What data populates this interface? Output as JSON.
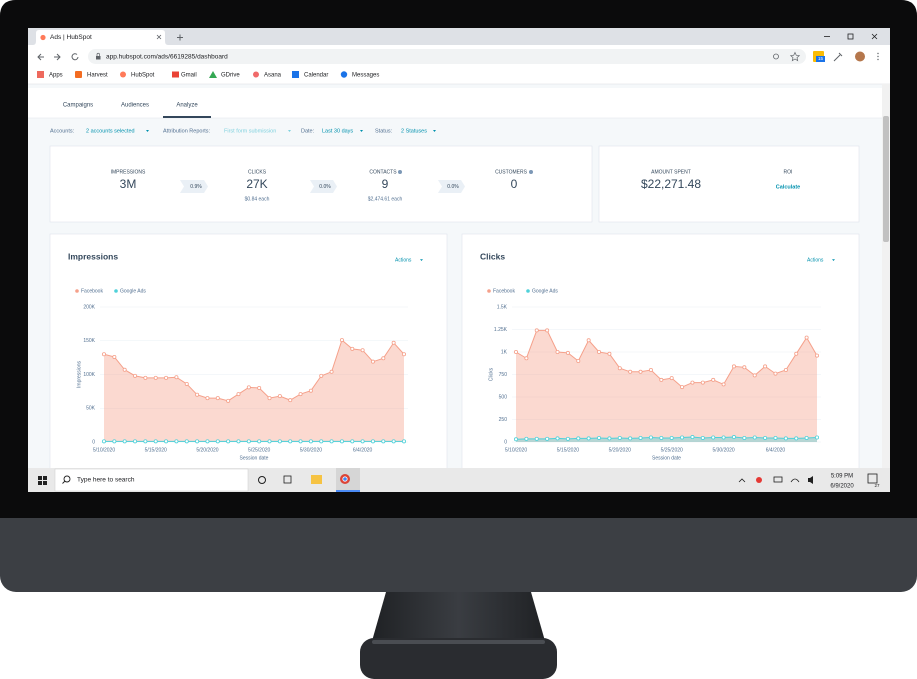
{
  "browser": {
    "tab_title": "Ads | HubSpot",
    "url": "app.hubspot.com/ads/6619285/dashboard",
    "calendar_badge": "15",
    "bookmarks": [
      "Apps",
      "Harvest",
      "HubSpot",
      "Gmail",
      "GDrive",
      "Asana",
      "Calendar",
      "Messages"
    ]
  },
  "nav": {
    "tabs": [
      "Campaigns",
      "Audiences",
      "Analyze"
    ]
  },
  "filters": [
    {
      "label": "Accounts:",
      "value": "2 accounts selected"
    },
    {
      "label": "Attribution Reports:",
      "value": "First form submission"
    },
    {
      "label": "Date:",
      "value": "Last 30 days"
    },
    {
      "label": "Status:",
      "value": "2 Statuses"
    }
  ],
  "summary": {
    "metrics": [
      {
        "label": "IMPRESSIONS",
        "value": "3M"
      },
      {
        "label": "CLICKS",
        "value": "27K",
        "sub": "$0.84 each"
      },
      {
        "label": "CONTACTS",
        "value": "9",
        "sub": "$2,474.61 each"
      },
      {
        "label": "CUSTOMERS",
        "value": "0"
      }
    ],
    "rates": [
      "0.9%",
      "0.0%",
      "0.0%"
    ],
    "spend": {
      "label": "AMOUNT SPENT",
      "value": "$22,271.48"
    },
    "roi": {
      "label": "ROI",
      "action": "Calculate"
    }
  },
  "chart_data": [
    {
      "type": "area",
      "title": "Impressions",
      "menu": "Actions",
      "y_label": "Impressions",
      "x_label": "Session date",
      "categories": [
        "5/10/2020",
        null,
        null,
        null,
        null,
        "5/15/2020",
        null,
        null,
        null,
        null,
        "5/20/2020",
        null,
        null,
        null,
        null,
        "5/25/2020",
        null,
        null,
        null,
        null,
        "5/30/2020",
        null,
        null,
        null,
        null,
        "6/4/2020",
        null,
        null,
        null,
        null
      ],
      "series": [
        {
          "name": "Facebook",
          "color": "#f5a08a",
          "values": [
            130000,
            126000,
            107000,
            98000,
            95000,
            95000,
            95000,
            96000,
            86000,
            70000,
            65000,
            65000,
            61000,
            71000,
            81000,
            80000,
            65000,
            68000,
            62000,
            71000,
            76000,
            98000,
            104000,
            151000,
            138000,
            136000,
            119000,
            124000,
            147000,
            130000
          ]
        },
        {
          "name": "Google Ads",
          "color": "#4fd1d9",
          "values": [
            1000,
            1000,
            1000,
            1000,
            1000,
            1000,
            1000,
            1000,
            1000,
            1000,
            1000,
            1000,
            1000,
            1000,
            1000,
            1000,
            1000,
            1000,
            1000,
            1000,
            1000,
            1000,
            1000,
            1000,
            1000,
            1000,
            1000,
            1000,
            1000,
            1000
          ]
        }
      ],
      "ylim": [
        0,
        200000
      ],
      "yticks": [
        0,
        {
          "value": 50000,
          "label": "50K"
        },
        {
          "value": 100000,
          "label": "100K"
        },
        {
          "value": 150000,
          "label": "150K"
        },
        {
          "value": 200000,
          "label": "200K"
        }
      ],
      "grid": true
    },
    {
      "type": "area",
      "title": "Clicks",
      "menu": "Actions",
      "y_label": "Clicks",
      "x_label": "Session date",
      "categories": [
        "5/10/2020",
        null,
        null,
        null,
        null,
        "5/15/2020",
        null,
        null,
        null,
        null,
        "5/20/2020",
        null,
        null,
        null,
        null,
        "5/25/2020",
        null,
        null,
        null,
        null,
        "5/30/2020",
        null,
        null,
        null,
        null,
        "6/4/2020",
        null,
        null,
        null,
        null
      ],
      "series": [
        {
          "name": "Facebook",
          "color": "#f5a08a",
          "values": [
            1000,
            930,
            1240,
            1240,
            1000,
            990,
            900,
            1130,
            1000,
            980,
            820,
            780,
            780,
            800,
            690,
            710,
            610,
            660,
            660,
            690,
            640,
            840,
            830,
            740,
            840,
            760,
            800,
            980,
            1160,
            960
          ]
        },
        {
          "name": "Google Ads",
          "color": "#4fd1d9",
          "values": [
            30,
            35,
            35,
            35,
            40,
            35,
            40,
            40,
            45,
            40,
            45,
            40,
            45,
            50,
            45,
            45,
            50,
            55,
            45,
            50,
            50,
            55,
            45,
            50,
            45,
            45,
            40,
            40,
            45,
            50
          ]
        }
      ],
      "ylim": [
        0,
        1500
      ],
      "yticks": [
        0,
        250,
        500,
        750,
        {
          "value": 1000,
          "label": "1K"
        },
        {
          "value": 1250,
          "label": "1.25K"
        },
        {
          "value": 1500,
          "label": "1.5K"
        }
      ],
      "grid": true
    }
  ],
  "taskbar": {
    "search": "Type here to search",
    "time": "5:09 PM",
    "date": "6/9/2020",
    "notifications": "27"
  }
}
